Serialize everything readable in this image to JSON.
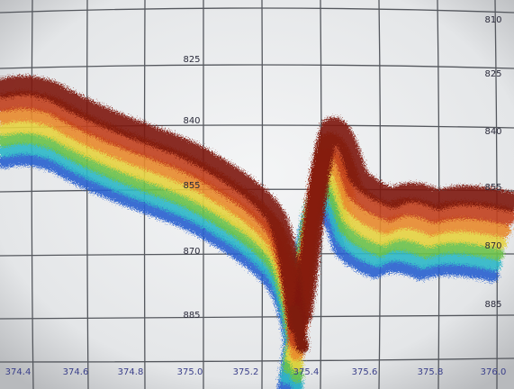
{
  "depth_labels_center": [
    "825",
    "840",
    "855",
    "870",
    "885"
  ],
  "depth_labels_right": [
    "810",
    "825",
    "840",
    "855",
    "870",
    "885"
  ],
  "x_labels": [
    "374.4",
    "374.6",
    "374.8",
    "375.0",
    "375.2",
    "375.4",
    "375.6",
    "375.8",
    "376.0"
  ]
}
